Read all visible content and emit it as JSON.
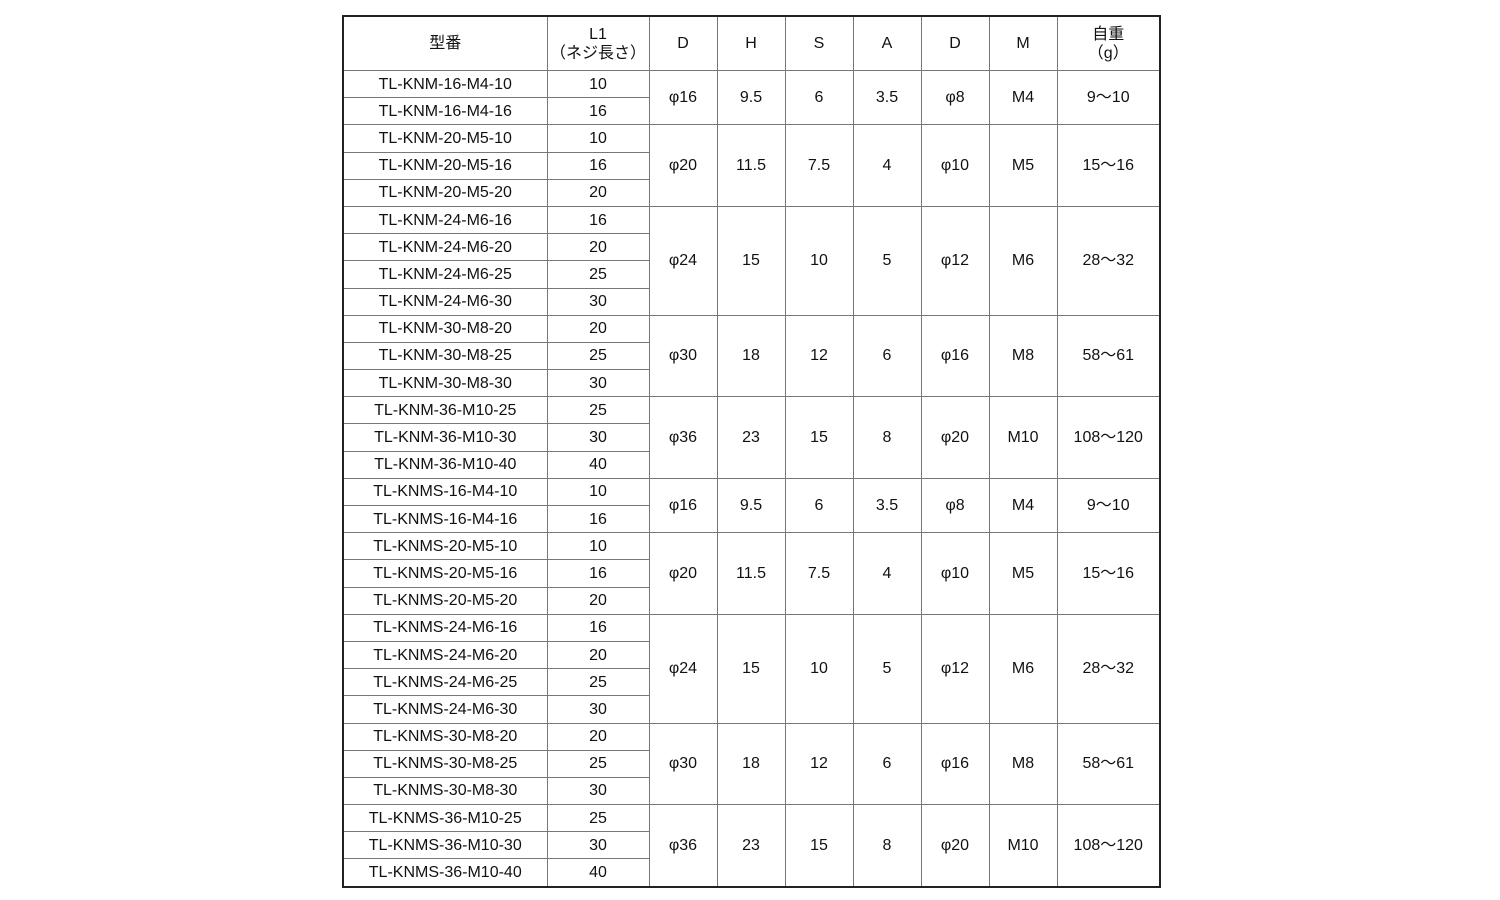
{
  "headers": [
    "型番",
    "L1\n（ネジ長さ）",
    "D",
    "H",
    "S",
    "A",
    "D",
    "M",
    "自重\n（g）"
  ],
  "header_l1_line1": "L1",
  "header_l1_line2": "（ネジ長さ）",
  "header_weight_line1": "自重",
  "header_weight_line2": "（g）",
  "groups": [
    {
      "rows": [
        [
          "TL-KNM-16-M4-10",
          "10"
        ],
        [
          "TL-KNM-16-M4-16",
          "16"
        ]
      ],
      "specs": [
        "φ16",
        "9.5",
        "6",
        "3.5",
        "φ8",
        "M4",
        "9～10"
      ]
    },
    {
      "rows": [
        [
          "TL-KNM-20-M5-10",
          "10"
        ],
        [
          "TL-KNM-20-M5-16",
          "16"
        ],
        [
          "TL-KNM-20-M5-20",
          "20"
        ]
      ],
      "specs": [
        "φ20",
        "11.5",
        "7.5",
        "4",
        "φ10",
        "M5",
        "15～16"
      ]
    },
    {
      "rows": [
        [
          "TL-KNM-24-M6-16",
          "16"
        ],
        [
          "TL-KNM-24-M6-20",
          "20"
        ],
        [
          "TL-KNM-24-M6-25",
          "25"
        ],
        [
          "TL-KNM-24-M6-30",
          "30"
        ]
      ],
      "specs": [
        "φ24",
        "15",
        "10",
        "5",
        "φ12",
        "M6",
        "28～32"
      ]
    },
    {
      "rows": [
        [
          "TL-KNM-30-M8-20",
          "20"
        ],
        [
          "TL-KNM-30-M8-25",
          "25"
        ],
        [
          "TL-KNM-30-M8-30",
          "30"
        ]
      ],
      "specs": [
        "φ30",
        "18",
        "12",
        "6",
        "φ16",
        "M8",
        "58～61"
      ]
    },
    {
      "rows": [
        [
          "TL-KNM-36-M10-25",
          "25"
        ],
        [
          "TL-KNM-36-M10-30",
          "30"
        ],
        [
          "TL-KNM-36-M10-40",
          "40"
        ]
      ],
      "specs": [
        "φ36",
        "23",
        "15",
        "8",
        "φ20",
        "M10",
        "108～120"
      ]
    },
    {
      "rows": [
        [
          "TL-KNMS-16-M4-10",
          "10"
        ],
        [
          "TL-KNMS-16-M4-16",
          "16"
        ]
      ],
      "specs": [
        "φ16",
        "9.5",
        "6",
        "3.5",
        "φ8",
        "M4",
        "9～10"
      ]
    },
    {
      "rows": [
        [
          "TL-KNMS-20-M5-10",
          "10"
        ],
        [
          "TL-KNMS-20-M5-16",
          "16"
        ],
        [
          "TL-KNMS-20-M5-20",
          "20"
        ]
      ],
      "specs": [
        "φ20",
        "11.5",
        "7.5",
        "4",
        "φ10",
        "M5",
        "15～16"
      ]
    },
    {
      "rows": [
        [
          "TL-KNMS-24-M6-16",
          "16"
        ],
        [
          "TL-KNMS-24-M6-20",
          "20"
        ],
        [
          "TL-KNMS-24-M6-25",
          "25"
        ],
        [
          "TL-KNMS-24-M6-30",
          "30"
        ]
      ],
      "specs": [
        "φ24",
        "15",
        "10",
        "5",
        "φ12",
        "M6",
        "28～32"
      ]
    },
    {
      "rows": [
        [
          "TL-KNMS-30-M8-20",
          "20"
        ],
        [
          "TL-KNMS-30-M8-25",
          "25"
        ],
        [
          "TL-KNMS-30-M8-30",
          "30"
        ]
      ],
      "specs": [
        "φ30",
        "18",
        "12",
        "6",
        "φ16",
        "M8",
        "58～61"
      ]
    },
    {
      "rows": [
        [
          "TL-KNMS-36-M10-25",
          "25"
        ],
        [
          "TL-KNMS-36-M10-30",
          "30"
        ],
        [
          "TL-KNMS-36-M10-40",
          "40"
        ]
      ],
      "specs": [
        "φ36",
        "23",
        "15",
        "8",
        "φ20",
        "M10",
        "108～120"
      ]
    }
  ]
}
